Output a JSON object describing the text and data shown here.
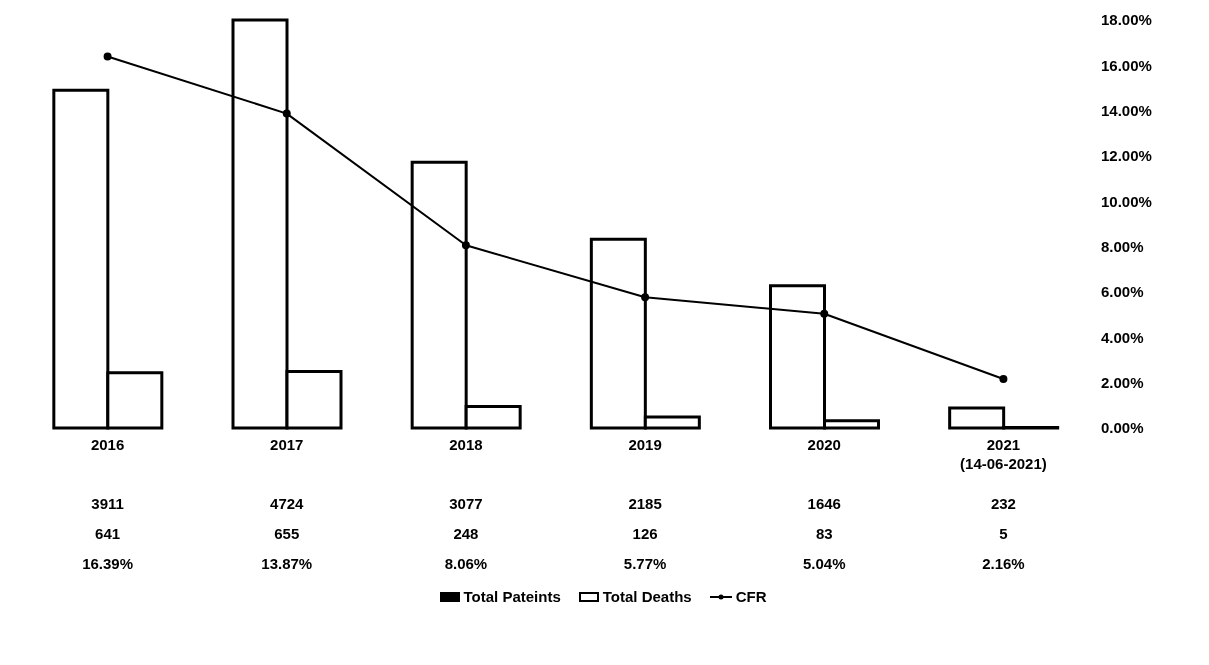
{
  "chart_data": {
    "type": "bar",
    "categories": [
      "2016",
      "2017",
      "2018",
      "2019",
      "2020",
      "2021 (14-06-2021)"
    ],
    "series": [
      {
        "name": "Total Pateints",
        "color": "#ffffff",
        "values": [
          3911,
          4724,
          3077,
          2185,
          1646,
          232
        ],
        "value_labels": [
          "3911",
          "4724",
          "3077",
          "2185",
          "1646",
          "232"
        ]
      },
      {
        "name": "Total Deaths",
        "color": "#ffffff",
        "values": [
          641,
          655,
          248,
          126,
          83,
          5
        ],
        "value_labels": [
          "641",
          "655",
          "248",
          "126",
          "83",
          "5"
        ]
      },
      {
        "name": "CFR",
        "type": "line",
        "axis": "y2",
        "color": "#000000",
        "values": [
          16.39,
          13.87,
          8.06,
          5.77,
          5.04,
          2.16
        ],
        "value_labels": [
          "16.39%",
          "13.87%",
          "8.06%",
          "5.77%",
          "5.04%",
          "2.16%"
        ]
      }
    ],
    "y2lim": [
      0,
      18
    ],
    "y2ticks": [
      {
        "value": 0,
        "label": "0.00%"
      },
      {
        "value": 2,
        "label": "2.00%"
      },
      {
        "value": 4,
        "label": "4.00%"
      },
      {
        "value": 6,
        "label": "6.00%"
      },
      {
        "value": 8,
        "label": "8.00%"
      },
      {
        "value": 10,
        "label": "10.00%"
      },
      {
        "value": 12,
        "label": "12.00%"
      },
      {
        "value": 14,
        "label": "14.00%"
      },
      {
        "value": 16,
        "label": "16.00%"
      },
      {
        "value": 18,
        "label": "18.00%"
      }
    ],
    "marker": "circle",
    "legend": "bottom",
    "grid": false
  }
}
